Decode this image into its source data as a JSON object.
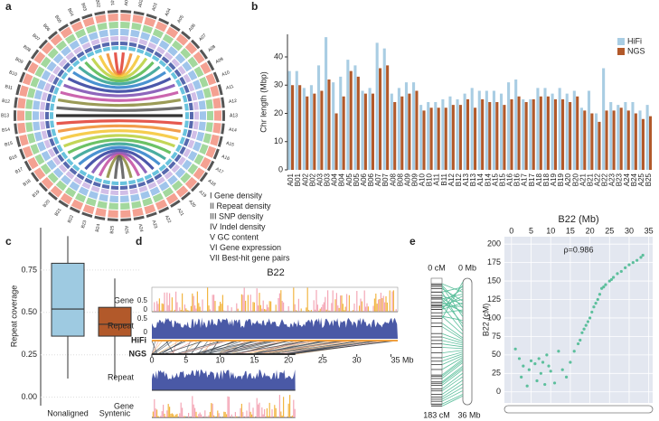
{
  "panels": [
    "a",
    "b",
    "c",
    "d",
    "e"
  ],
  "chart_data": [
    {
      "type": "circos",
      "labels": [
        "A01",
        "A02",
        "A03",
        "A04",
        "A05",
        "A06",
        "A07",
        "A08",
        "A09",
        "A10",
        "A11",
        "A12",
        "A13",
        "A14",
        "A15",
        "A16",
        "A17",
        "A18",
        "A19",
        "A20",
        "A21",
        "A22",
        "A23",
        "A24",
        "A25",
        "B25",
        "B24",
        "B23",
        "B22",
        "B21",
        "B20",
        "B19",
        "B18",
        "B17",
        "B16",
        "B15",
        "B14",
        "B13",
        "B12",
        "B11",
        "B10",
        "B09",
        "B08",
        "B07",
        "B06",
        "B05",
        "B04",
        "B03",
        "B02",
        "B01"
      ],
      "legend": [
        "I   Gene density",
        "II  Repeat density",
        "III SNP density",
        "IV  Indel density",
        "V   GC content",
        "VI  Gene expression",
        "VII Best-hit gene pairs"
      ]
    },
    {
      "type": "bar",
      "y_label": "Chr length (Mbp)",
      "categories": [
        "A01",
        "B01",
        "A02",
        "B02",
        "A03",
        "B03",
        "A04",
        "B04",
        "A05",
        "B05",
        "A06",
        "B06",
        "A07",
        "B07",
        "A08",
        "B08",
        "A09",
        "B09",
        "A10",
        "B10",
        "A11",
        "B11",
        "A12",
        "B12",
        "A13",
        "B13",
        "A14",
        "B14",
        "A15",
        "B15",
        "A16",
        "B16",
        "A17",
        "B17",
        "A18",
        "B18",
        "A19",
        "B19",
        "A20",
        "B20",
        "A21",
        "B21",
        "A22",
        "B22",
        "A23",
        "B23",
        "A24",
        "B24",
        "A25",
        "B25"
      ],
      "series": [
        {
          "name": "HiFi",
          "color": "#a9cde3",
          "values": [
            35,
            35,
            29,
            30,
            37,
            47,
            31,
            33,
            39,
            37,
            28,
            29,
            45,
            43,
            27,
            29,
            31,
            31,
            23,
            24,
            24,
            25,
            26,
            25,
            27,
            29,
            28,
            28,
            28,
            27,
            31,
            32,
            25,
            25,
            29,
            29,
            27,
            29,
            27,
            28,
            22,
            28,
            20,
            36,
            24,
            23,
            24,
            24,
            21,
            23
          ]
        },
        {
          "name": "NGS",
          "color": "#b2592a",
          "values": [
            30,
            30,
            26,
            27,
            28,
            32,
            20,
            26,
            35,
            33,
            27,
            27,
            36,
            37,
            24,
            26,
            27,
            28,
            21,
            22,
            22,
            22,
            23,
            23,
            25,
            22,
            25,
            24,
            24,
            23,
            25,
            26,
            24,
            25,
            26,
            26,
            25,
            25,
            24,
            26,
            21,
            20,
            17,
            21,
            21,
            22,
            21,
            20,
            18,
            19
          ]
        }
      ],
      "ylim": [
        0,
        48
      ],
      "yticks": [
        0,
        10,
        20,
        30,
        40
      ],
      "legend": "top-right"
    },
    {
      "type": "box",
      "y_label": "Repeat coverage",
      "categories": [
        "Nonaligned",
        "Syntenic"
      ],
      "colors": [
        "#9ecae1",
        "#b2592a"
      ],
      "values": [
        [
          0.11,
          0.36,
          0.52,
          0.79,
          0.95
        ],
        [
          0.11,
          0.36,
          0.43,
          0.53,
          0.7
        ]
      ],
      "ylim": [
        -0.05,
        1.0
      ],
      "yticks": [
        {
          "value": 0,
          "label": "0.00"
        },
        {
          "value": 0.25,
          "label": "0.25"
        },
        {
          "value": 0.5,
          "label": "0.50"
        },
        {
          "value": 0.75,
          "label": "0.75"
        }
      ]
    },
    {
      "type": "genome-tracks",
      "title": "B22",
      "tracks": [
        "Gene",
        "Repeat",
        "HiFi",
        "NGS",
        "Repeat",
        "Gene"
      ],
      "series": [
        {
          "name": "HiFi",
          "length": 36
        },
        {
          "name": "NGS",
          "length": 21
        }
      ],
      "xlim": [
        0,
        36
      ],
      "xticks": [
        0,
        5,
        10,
        15,
        20,
        25,
        30,
        {
          "value": 35,
          "label": "35 Mb"
        }
      ],
      "track_yticks": [
        0.5,
        0
      ]
    },
    {
      "type": "scatter",
      "title": "B22 (Mb)",
      "y_label": "B22 (cM)",
      "annotation": "ρ=0.986",
      "color": "#5cbf9c",
      "map_labels": [
        "0 cM",
        "0 Mb",
        "183 cM",
        "36 Mb"
      ],
      "map_cm_max": 183,
      "map_mb_max": 36,
      "x": [
        1,
        2,
        2.5,
        3,
        4,
        4.5,
        5,
        6,
        6.5,
        7,
        7.5,
        8,
        8.5,
        9,
        9.5,
        10,
        11,
        12,
        13,
        14,
        15,
        16,
        17,
        17.5,
        18,
        18.5,
        19,
        19.5,
        20,
        20.5,
        21,
        21.5,
        22,
        22.5,
        23,
        23.5,
        24,
        25,
        25.5,
        26,
        27,
        28,
        29,
        30,
        31,
        32,
        33,
        33.5
      ],
      "values": [
        58,
        45,
        20,
        35,
        8,
        30,
        42,
        38,
        15,
        45,
        25,
        40,
        10,
        50,
        35,
        28,
        12,
        55,
        30,
        20,
        40,
        55,
        65,
        70,
        80,
        85,
        90,
        95,
        100,
        108,
        115,
        120,
        125,
        132,
        140,
        142,
        145,
        150,
        152,
        155,
        160,
        163,
        168,
        172,
        175,
        178,
        182,
        185
      ],
      "xlim": [
        -1.8,
        36
      ],
      "ylim": [
        -15,
        210
      ],
      "xticks": [
        0,
        5,
        10,
        15,
        20,
        25,
        30,
        35
      ],
      "yticks": [
        0,
        25,
        50,
        75,
        100,
        125,
        150,
        175,
        200
      ]
    }
  ]
}
